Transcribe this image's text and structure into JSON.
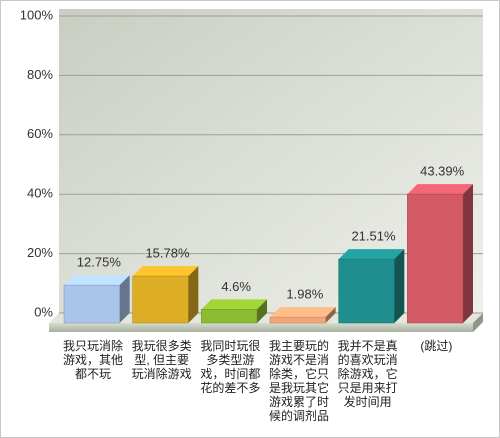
{
  "chart_data": {
    "type": "bar3d",
    "categories": [
      "我只玩消除游戏，其他都不玩",
      "我玩很多类型, 但主要玩消除游戏",
      "我同时玩很多类型游戏，时间都花的差不多",
      "我主要玩的游戏不是消除类，它只是我玩其它游戏累了时候的调剂品",
      "我并不是真的喜欢玩消除游戏，它只是用来打发时间用",
      "(跳过)"
    ],
    "values": [
      12.75,
      15.78,
      4.6,
      1.98,
      21.51,
      43.39
    ],
    "value_labels": [
      "12.75%",
      "15.78%",
      "4.6%",
      "1.98%",
      "21.51%",
      "43.39%"
    ],
    "colors": [
      "#a9c5ea",
      "#dcad25",
      "#8dbb32",
      "#f2a577",
      "#1f8e8e",
      "#d45a66"
    ],
    "ylim": [
      0,
      100
    ],
    "yticks": [
      {
        "value": 0,
        "label": "0%"
      },
      {
        "value": 20,
        "label": "20%"
      },
      {
        "value": 40,
        "label": "40%"
      },
      {
        "value": 60,
        "label": "60%"
      },
      {
        "value": 80,
        "label": "80%"
      },
      {
        "value": 100,
        "label": "100%"
      }
    ],
    "grid": true
  }
}
